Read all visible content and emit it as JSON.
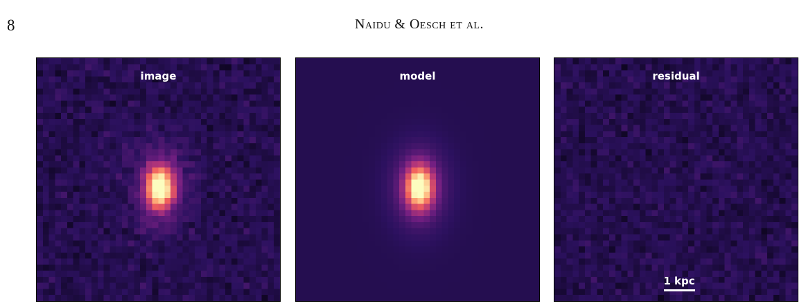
{
  "header": {
    "page_number": "8",
    "running_head": "Naidu & Oesch et al."
  },
  "figure": {
    "panels": [
      {
        "label": "image"
      },
      {
        "label": "model"
      },
      {
        "label": "residual"
      }
    ],
    "scale_bar": {
      "label": "1 kpc"
    },
    "colormap": [
      "#000004",
      "#2c115f",
      "#721f81",
      "#b73779",
      "#f1605d",
      "#feb078",
      "#fcfdbf"
    ]
  }
}
